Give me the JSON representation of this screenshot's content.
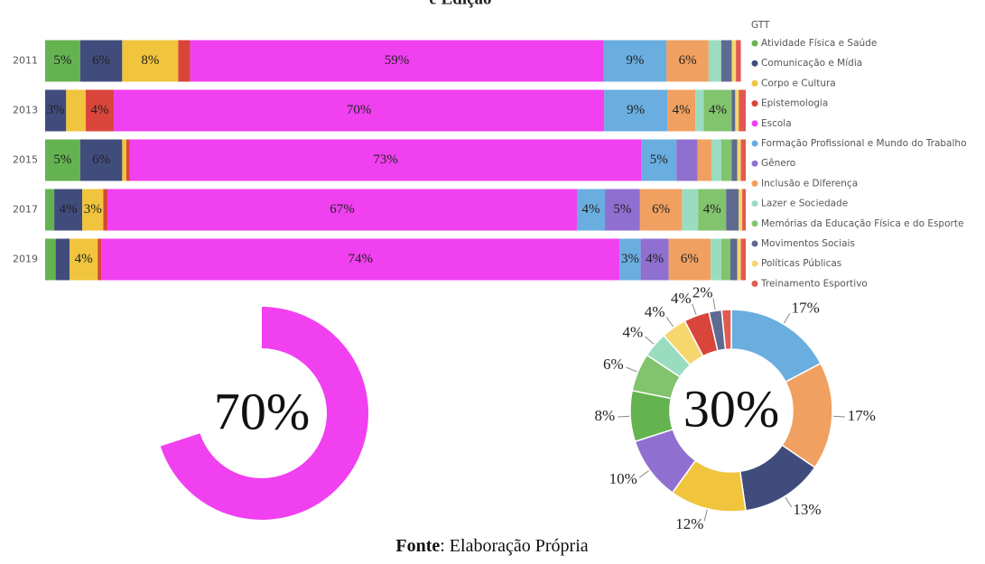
{
  "chart_data": [
    {
      "type": "stacked-barh",
      "title": "e Edição",
      "legend_title": "GTT",
      "legend": "right",
      "categories": [
        "2011",
        "2013",
        "2015",
        "2017",
        "2019"
      ],
      "xlim": [
        0,
        100
      ],
      "series": [
        {
          "name": "Atividade Física e Saúde",
          "color": "#64b350",
          "values": [
            5,
            0,
            5,
            1.3,
            1.5
          ],
          "value_labels": [
            "5%",
            null,
            "5%",
            null,
            null
          ]
        },
        {
          "name": "Comunicação e Mídia",
          "color": "#404c7c",
          "values": [
            6,
            3,
            6,
            4,
            2
          ],
          "value_labels": [
            "6%",
            "3%",
            "6%",
            "4%",
            null
          ]
        },
        {
          "name": "Corpo e Cultura",
          "color": "#f0c43c",
          "values": [
            8,
            2.8,
            0.6,
            3,
            4
          ],
          "value_labels": [
            "8%",
            null,
            null,
            "3%",
            "4%"
          ]
        },
        {
          "name": "Epistemologia",
          "color": "#d9453b",
          "values": [
            1.7,
            4,
            0.5,
            0.6,
            0.5
          ],
          "value_labels": [
            null,
            "4%",
            null,
            null,
            null
          ]
        },
        {
          "name": "Escola",
          "color": "#f040f0",
          "values": [
            59,
            70,
            73,
            67,
            74
          ],
          "value_labels": [
            "59%",
            "70%",
            "73%",
            "67%",
            "74%"
          ]
        },
        {
          "name": "Formação Profissional e Mundo do Trabalho",
          "color": "#6aaee0",
          "values": [
            9,
            9,
            5,
            4,
            3
          ],
          "value_labels": [
            "9%",
            "9%",
            "5%",
            "4%",
            "3%"
          ]
        },
        {
          "name": "Gênero",
          "color": "#8f6fd0",
          "values": [
            0,
            0,
            3,
            5,
            4
          ],
          "value_labels": [
            null,
            null,
            null,
            "5%",
            "4%"
          ]
        },
        {
          "name": "Inclusão e Diferença",
          "color": "#f0a060",
          "values": [
            6,
            4,
            2,
            6,
            6
          ],
          "value_labels": [
            "6%",
            "4%",
            null,
            "6%",
            "6%"
          ]
        },
        {
          "name": "Lazer e Sociedade",
          "color": "#9adcc0",
          "values": [
            1.8,
            1.2,
            1.4,
            2.3,
            1.5
          ],
          "value_labels": [
            null,
            null,
            null,
            null,
            null
          ]
        },
        {
          "name": "Memórias da Educação Física e do Esporte",
          "color": "#82c36e",
          "values": [
            0,
            4,
            1.5,
            4,
            1.3
          ],
          "value_labels": [
            null,
            "4%",
            null,
            "4%",
            null
          ]
        },
        {
          "name": "Movimentos Sociais",
          "color": "#5e6a90",
          "values": [
            1.5,
            0.5,
            0.8,
            1.8,
            1
          ],
          "value_labels": [
            null,
            null,
            null,
            null,
            null
          ]
        },
        {
          "name": "Políticas Públicas",
          "color": "#f5d76e",
          "values": [
            0.6,
            0.5,
            0.5,
            0.5,
            0.5
          ],
          "value_labels": [
            null,
            null,
            null,
            null,
            null
          ]
        },
        {
          "name": "Treinamento Esportivo",
          "color": "#e05a50",
          "values": [
            0.7,
            1,
            0.7,
            0.5,
            0.7
          ],
          "value_labels": [
            null,
            null,
            null,
            null,
            null
          ]
        }
      ]
    },
    {
      "type": "gauge",
      "value": 70,
      "max": 100,
      "label": "70%",
      "color": "#f040f0"
    },
    {
      "type": "donut",
      "center_label": "30%",
      "values": [
        17,
        17,
        13,
        12,
        10,
        8,
        6,
        4,
        4,
        4,
        2,
        1.5
      ],
      "value_labels": [
        "17%",
        "17%",
        "13%",
        "12%",
        "10%",
        "8%",
        "6%",
        "4%",
        "4%",
        "4%",
        "2%",
        null
      ],
      "colors": [
        "#6aaee0",
        "#f0a060",
        "#404c7c",
        "#f0c43c",
        "#8f6fd0",
        "#64b350",
        "#82c36e",
        "#9adcc0",
        "#f5d76e",
        "#d9453b",
        "#5e6a90",
        "#e05a50"
      ]
    }
  ],
  "source": {
    "label": "Fonte",
    "text": ": Elaboração Própria"
  }
}
